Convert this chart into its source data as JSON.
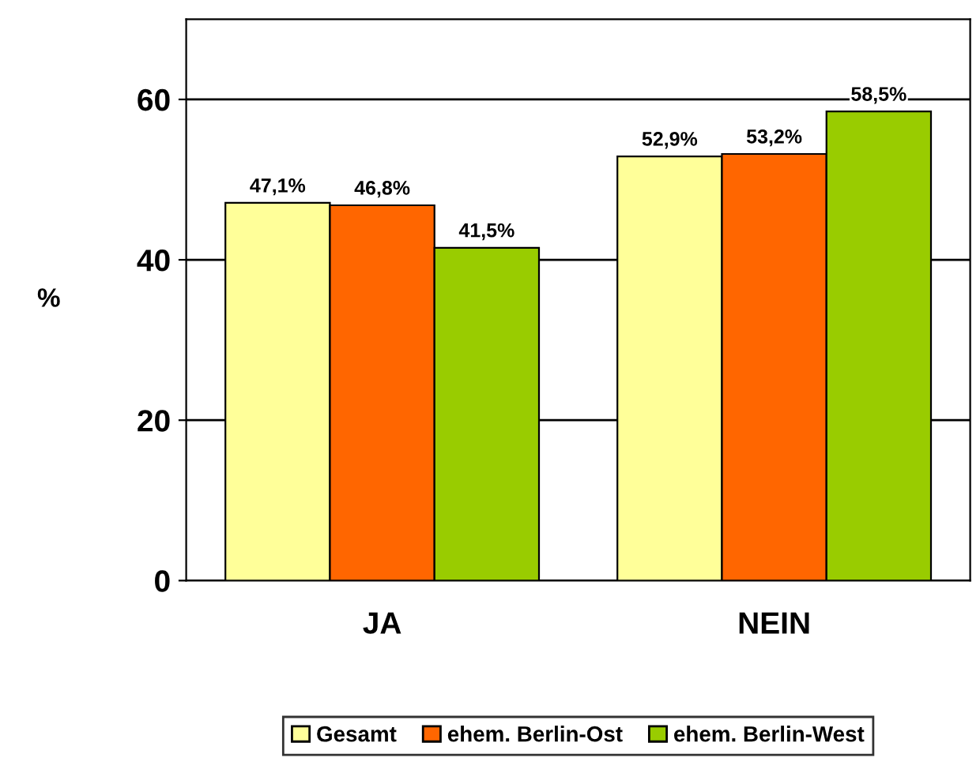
{
  "chart_data": {
    "type": "bar",
    "ylabel": "%",
    "categories": [
      "JA",
      "NEIN"
    ],
    "series": [
      {
        "name": "Gesamt",
        "color": "#ffff99",
        "values": [
          47.1,
          52.9
        ],
        "value_labels": [
          "47,1%",
          "52,9%"
        ]
      },
      {
        "name": "ehem. Berlin-Ost",
        "color": "#ff6600",
        "values": [
          46.8,
          53.2
        ],
        "value_labels": [
          "46,8%",
          "53,2%"
        ]
      },
      {
        "name": "ehem. Berlin-West",
        "color": "#99cc00",
        "values": [
          41.5,
          58.5
        ],
        "value_labels": [
          "41,5%",
          "58,5%"
        ]
      }
    ],
    "ylim": [
      0,
      70
    ],
    "yticks": [
      0,
      20,
      40,
      60
    ],
    "grid": "y",
    "legend": "bottom"
  }
}
